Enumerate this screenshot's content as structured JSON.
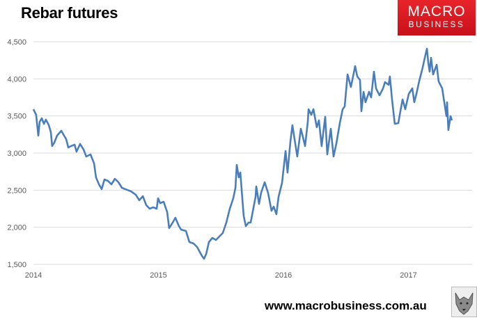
{
  "header": {
    "title": "Rebar futures"
  },
  "logo": {
    "line1": "MACRO",
    "line2": "BUSINESS"
  },
  "footer": {
    "url": "www.macrobusiness.com.au"
  },
  "colors": {
    "line": "#4a7ebb",
    "grid": "#d9d9d9",
    "logo_bg": "#d9161e"
  },
  "chart_data": {
    "type": "line",
    "title": "Rebar futures",
    "xlabel": "",
    "ylabel": "",
    "ylim": [
      1500,
      4500
    ],
    "xlim": [
      2014,
      2017.51
    ],
    "yticks": [
      1500,
      2000,
      2500,
      3000,
      3500,
      4000,
      4500
    ],
    "ytick_labels": [
      "1,500",
      "2,000",
      "2,500",
      "3,000",
      "3,500",
      "4,000",
      "4,500"
    ],
    "xticks": [
      2014,
      2015,
      2016,
      2017
    ],
    "xtick_labels": [
      "2014",
      "2015",
      "2016",
      "2017"
    ],
    "grid": "horizontal",
    "series": [
      {
        "name": "Rebar futures",
        "x": [
          2014.0,
          2014.022,
          2014.039,
          2014.05,
          2014.067,
          2014.084,
          2014.1,
          2014.123,
          2014.139,
          2014.15,
          2014.167,
          2014.189,
          2014.223,
          2014.245,
          2014.262,
          2014.279,
          2014.301,
          2014.329,
          2014.345,
          2014.373,
          2014.401,
          2014.423,
          2014.457,
          2014.485,
          2014.501,
          2014.524,
          2014.546,
          2014.568,
          2014.596,
          2014.624,
          2014.652,
          2014.68,
          2014.708,
          2014.735,
          2014.78,
          2014.819,
          2014.847,
          2014.875,
          2014.903,
          2014.93,
          2014.958,
          2014.986,
          2014.997,
          2015.014,
          2015.042,
          2015.07,
          2015.086,
          2015.114,
          2015.136,
          2015.164,
          2015.181,
          2015.22,
          2015.248,
          2015.281,
          2015.309,
          2015.348,
          2015.365,
          2015.382,
          2015.404,
          2015.432,
          2015.46,
          2015.487,
          2015.515,
          2015.543,
          2015.571,
          2015.599,
          2015.616,
          2015.627,
          2015.643,
          2015.655,
          2015.682,
          2015.699,
          2015.721,
          2015.738,
          2015.777,
          2015.783,
          2015.805,
          2015.822,
          2015.85,
          2015.877,
          2015.905,
          2015.922,
          2015.944,
          2015.961,
          2015.989,
          2016.017,
          2016.033,
          2016.056,
          2016.072,
          2016.089,
          2016.111,
          2016.139,
          2016.156,
          2016.173,
          2016.195,
          2016.201,
          2016.223,
          2016.24,
          2016.267,
          2016.284,
          2016.306,
          2016.334,
          2016.351,
          2016.379,
          2016.401,
          2016.423,
          2016.451,
          2016.474,
          2016.49,
          2016.513,
          2016.54,
          2016.557,
          2016.574,
          2016.591,
          2016.613,
          2016.624,
          2016.641,
          2016.657,
          2016.685,
          2016.702,
          2016.724,
          2016.741,
          2016.769,
          2016.797,
          2016.813,
          2016.841,
          2016.852,
          2016.869,
          2016.891,
          2016.919,
          2016.936,
          2016.953,
          2016.975,
          2017.003,
          2017.031,
          2017.047,
          2017.064,
          2017.086,
          2017.114,
          2017.131,
          2017.148,
          2017.159,
          2017.17,
          2017.181,
          2017.198,
          2017.226,
          2017.242,
          2017.27,
          2017.287,
          2017.304,
          2017.309,
          2017.32,
          2017.337,
          2017.348
        ],
        "values": [
          3590,
          3516,
          3234,
          3422,
          3469,
          3394,
          3450,
          3375,
          3281,
          3094,
          3141,
          3234,
          3300,
          3234,
          3188,
          3075,
          3094,
          3113,
          3019,
          3122,
          3047,
          2953,
          2981,
          2859,
          2672,
          2578,
          2513,
          2644,
          2625,
          2578,
          2653,
          2606,
          2531,
          2513,
          2484,
          2438,
          2363,
          2419,
          2297,
          2250,
          2269,
          2250,
          2391,
          2325,
          2344,
          2203,
          1988,
          2063,
          2128,
          2016,
          1969,
          1950,
          1800,
          1781,
          1734,
          1613,
          1575,
          1641,
          1800,
          1856,
          1828,
          1875,
          1922,
          2063,
          2250,
          2391,
          2531,
          2841,
          2672,
          2738,
          2156,
          2016,
          2063,
          2063,
          2409,
          2550,
          2316,
          2466,
          2606,
          2466,
          2222,
          2278,
          2175,
          2409,
          2597,
          3028,
          2737,
          3159,
          3375,
          3188,
          2953,
          3328,
          3216,
          3094,
          3422,
          3591,
          3516,
          3591,
          3347,
          3441,
          3094,
          3488,
          2981,
          3328,
          2953,
          3122,
          3403,
          3591,
          3628,
          4059,
          3891,
          4031,
          4172,
          4031,
          3984,
          3563,
          3825,
          3684,
          3825,
          3750,
          4097,
          3872,
          3778,
          3872,
          3956,
          3919,
          4031,
          3722,
          3394,
          3403,
          3563,
          3722,
          3591,
          3797,
          3872,
          3684,
          3797,
          3966,
          4153,
          4284,
          4406,
          4219,
          4097,
          4284,
          4059,
          4191,
          3966,
          3872,
          3684,
          3497,
          3684,
          3309,
          3497,
          3441
        ]
      }
    ]
  }
}
